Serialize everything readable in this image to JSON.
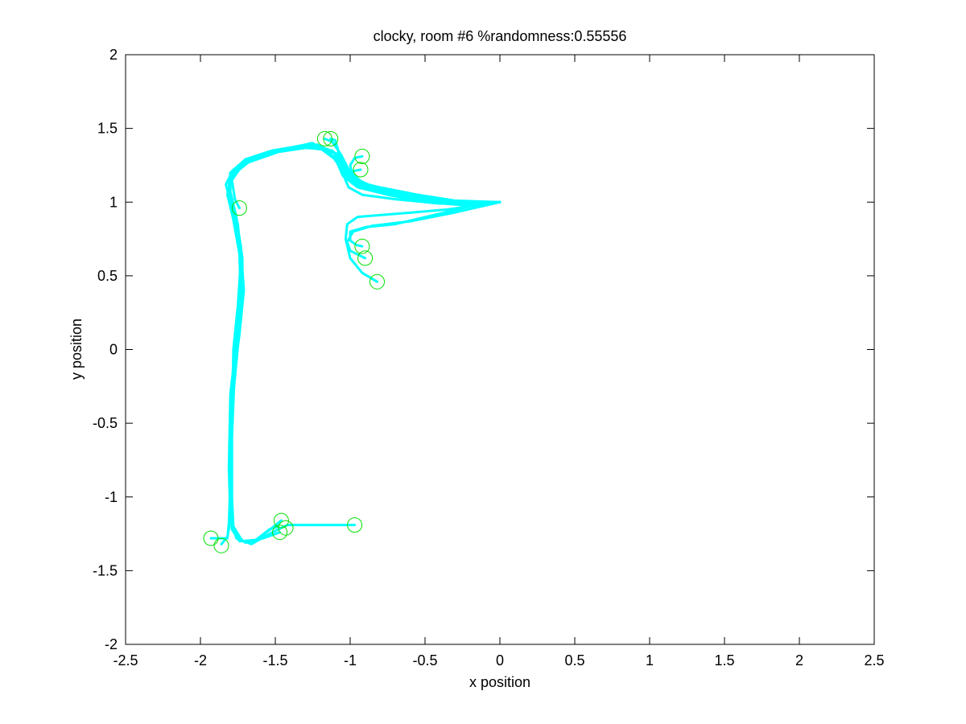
{
  "chart_data": {
    "type": "line",
    "title": "clocky, room #6 %randomness:0.55556",
    "xlabel": "x position",
    "ylabel": "y position",
    "xlim": [
      -2.5,
      2.5
    ],
    "ylim": [
      -2,
      2
    ],
    "xticks": [
      -2.5,
      -2,
      -1.5,
      -1,
      -0.5,
      0,
      0.5,
      1,
      1.5,
      2,
      2.5
    ],
    "yticks": [
      -2,
      -1.5,
      -1,
      -0.5,
      0,
      0.5,
      1,
      1.5,
      2
    ],
    "xtick_labels": [
      "-2.5",
      "-2",
      "-1.5",
      "-1",
      "-0.5",
      "0",
      "0.5",
      "1",
      "1.5",
      "2",
      "2.5"
    ],
    "ytick_labels": [
      "-2",
      "-1.5",
      "-1",
      "-0.5",
      "0",
      "0.5",
      "1",
      "1.5",
      "2"
    ],
    "grid": false,
    "colors": {
      "trajectory": "#00ffff",
      "endpoint": "#00e000",
      "axes": "#000000",
      "background": "#ffffff"
    },
    "series": [
      {
        "values": [
          [
            0,
            1
          ],
          [
            -0.2,
            0.99
          ],
          [
            -0.45,
            1.03
          ],
          [
            -0.7,
            1.08
          ],
          [
            -0.9,
            1.12
          ],
          [
            -1.0,
            1.2
          ],
          [
            -1.08,
            1.32
          ],
          [
            -1.22,
            1.39
          ],
          [
            -1.45,
            1.36
          ],
          [
            -1.65,
            1.3
          ],
          [
            -1.78,
            1.22
          ],
          [
            -1.83,
            1.12
          ],
          [
            -1.8,
            1.0
          ],
          [
            -1.75,
            0.85
          ],
          [
            -1.73,
            0.6
          ],
          [
            -1.75,
            0.3
          ],
          [
            -1.78,
            0.0
          ],
          [
            -1.79,
            -0.5
          ],
          [
            -1.79,
            -1.0
          ],
          [
            -1.78,
            -1.2
          ],
          [
            -1.72,
            -1.3
          ],
          [
            -1.62,
            -1.29
          ],
          [
            -1.46,
            -1.16
          ]
        ]
      },
      {
        "values": [
          [
            0,
            1
          ],
          [
            -0.25,
            0.98
          ],
          [
            -0.5,
            1.0
          ],
          [
            -0.75,
            1.05
          ],
          [
            -0.95,
            1.1
          ],
          [
            -1.05,
            1.18
          ],
          [
            -1.1,
            1.3
          ],
          [
            -1.25,
            1.4
          ],
          [
            -1.5,
            1.35
          ],
          [
            -1.7,
            1.28
          ],
          [
            -1.8,
            1.2
          ],
          [
            -1.81,
            1.08
          ],
          [
            -1.77,
            0.92
          ],
          [
            -1.73,
            0.7
          ],
          [
            -1.71,
            0.4
          ],
          [
            -1.74,
            0.1
          ],
          [
            -1.78,
            -0.2
          ],
          [
            -1.8,
            -0.7
          ],
          [
            -1.8,
            -1.1
          ],
          [
            -1.77,
            -1.25
          ],
          [
            -1.7,
            -1.31
          ],
          [
            -1.58,
            -1.28
          ],
          [
            -1.47,
            -1.24
          ]
        ]
      },
      {
        "values": [
          [
            0,
            1
          ],
          [
            -0.3,
            1.01
          ],
          [
            -0.55,
            1.05
          ],
          [
            -0.8,
            1.09
          ],
          [
            -0.97,
            1.14
          ],
          [
            -1.05,
            1.24
          ],
          [
            -1.12,
            1.35
          ],
          [
            -1.3,
            1.37
          ],
          [
            -1.55,
            1.33
          ],
          [
            -1.72,
            1.25
          ],
          [
            -1.79,
            1.15
          ],
          [
            -1.77,
            1.02
          ],
          [
            -1.74,
            0.96
          ]
        ]
      },
      {
        "values": [
          [
            0,
            1
          ],
          [
            -0.28,
            0.99
          ],
          [
            -0.52,
            1.02
          ],
          [
            -0.78,
            1.07
          ],
          [
            -0.96,
            1.11
          ],
          [
            -1.04,
            1.19
          ],
          [
            -1.1,
            1.29
          ],
          [
            -1.22,
            1.38
          ],
          [
            -1.48,
            1.34
          ],
          [
            -1.68,
            1.27
          ],
          [
            -1.79,
            1.18
          ],
          [
            -1.82,
            1.05
          ],
          [
            -1.78,
            0.88
          ],
          [
            -1.74,
            0.65
          ],
          [
            -1.73,
            0.35
          ],
          [
            -1.76,
            0.05
          ],
          [
            -1.8,
            -0.3
          ],
          [
            -1.81,
            -0.8
          ],
          [
            -1.8,
            -1.15
          ],
          [
            -1.76,
            -1.28
          ],
          [
            -1.66,
            -1.32
          ],
          [
            -1.52,
            -1.24
          ],
          [
            -1.42,
            -1.19
          ],
          [
            -0.97,
            -1.19
          ]
        ]
      },
      {
        "values": [
          [
            0,
            1
          ],
          [
            -0.22,
            1.0
          ],
          [
            -0.48,
            1.01
          ],
          [
            -0.72,
            1.06
          ],
          [
            -0.93,
            1.11
          ],
          [
            -1.02,
            1.21
          ],
          [
            -1.09,
            1.33
          ],
          [
            -1.28,
            1.39
          ],
          [
            -1.52,
            1.35
          ],
          [
            -1.7,
            1.29
          ],
          [
            -1.8,
            1.2
          ],
          [
            -1.8,
            1.07
          ],
          [
            -1.76,
            0.9
          ],
          [
            -1.72,
            0.62
          ],
          [
            -1.72,
            0.32
          ],
          [
            -1.75,
            0.02
          ],
          [
            -1.79,
            -0.4
          ],
          [
            -1.8,
            -0.9
          ],
          [
            -1.81,
            -1.18
          ],
          [
            -1.82,
            -1.28
          ],
          [
            -1.93,
            -1.28
          ]
        ]
      },
      {
        "values": [
          [
            0,
            1
          ],
          [
            -0.26,
            0.98
          ],
          [
            -0.5,
            1.02
          ],
          [
            -0.76,
            1.07
          ],
          [
            -0.95,
            1.12
          ],
          [
            -1.04,
            1.22
          ],
          [
            -1.11,
            1.34
          ],
          [
            -1.26,
            1.4
          ],
          [
            -1.5,
            1.34
          ],
          [
            -1.69,
            1.28
          ],
          [
            -1.79,
            1.19
          ],
          [
            -1.81,
            1.06
          ],
          [
            -1.76,
            0.9
          ],
          [
            -1.73,
            0.66
          ],
          [
            -1.72,
            0.36
          ],
          [
            -1.75,
            0.04
          ],
          [
            -1.79,
            -0.35
          ],
          [
            -1.8,
            -0.85
          ],
          [
            -1.8,
            -1.16
          ],
          [
            -1.82,
            -1.27
          ],
          [
            -1.86,
            -1.32
          ]
        ]
      },
      {
        "values": [
          [
            0,
            1
          ],
          [
            -0.25,
            1.0
          ],
          [
            -0.5,
            1.04
          ],
          [
            -0.75,
            1.08
          ],
          [
            -0.92,
            1.12
          ],
          [
            -1.0,
            1.2
          ],
          [
            -1.06,
            1.32
          ],
          [
            -1.12,
            1.41
          ],
          [
            -1.17,
            1.43
          ]
        ]
      },
      {
        "values": [
          [
            0,
            1
          ],
          [
            -0.3,
            0.99
          ],
          [
            -0.55,
            1.03
          ],
          [
            -0.8,
            1.07
          ],
          [
            -0.98,
            1.13
          ],
          [
            -1.05,
            1.23
          ],
          [
            -1.08,
            1.35
          ],
          [
            -1.1,
            1.42
          ],
          [
            -1.13,
            1.43
          ]
        ]
      },
      {
        "values": [
          [
            0,
            1
          ],
          [
            -0.3,
            1.0
          ],
          [
            -0.6,
            1.05
          ],
          [
            -0.85,
            1.1
          ],
          [
            -0.98,
            1.16
          ],
          [
            -1.0,
            1.25
          ],
          [
            -0.97,
            1.3
          ],
          [
            -0.92,
            1.31
          ]
        ]
      },
      {
        "values": [
          [
            0,
            1
          ],
          [
            -0.35,
            1.0
          ],
          [
            -0.65,
            1.06
          ],
          [
            -0.88,
            1.12
          ],
          [
            -0.99,
            1.17
          ],
          [
            -0.98,
            1.21
          ],
          [
            -0.93,
            1.22
          ]
        ]
      },
      {
        "values": [
          [
            0,
            1
          ],
          [
            -0.2,
            0.97
          ],
          [
            -0.45,
            0.91
          ],
          [
            -0.7,
            0.85
          ],
          [
            -0.9,
            0.83
          ],
          [
            -1.0,
            0.8
          ],
          [
            -1.0,
            0.74
          ],
          [
            -0.96,
            0.71
          ],
          [
            -0.92,
            0.7
          ]
        ]
      },
      {
        "values": [
          [
            0,
            1
          ],
          [
            -0.3,
            0.93
          ],
          [
            -0.6,
            0.87
          ],
          [
            -0.85,
            0.84
          ],
          [
            -0.98,
            0.8
          ],
          [
            -1.02,
            0.73
          ],
          [
            -1.0,
            0.67
          ],
          [
            -0.94,
            0.64
          ],
          [
            -0.9,
            0.62
          ]
        ]
      },
      {
        "values": [
          [
            0,
            1
          ],
          [
            -0.35,
            0.95
          ],
          [
            -0.7,
            0.92
          ],
          [
            -0.95,
            0.9
          ],
          [
            -1.02,
            0.85
          ],
          [
            -1.03,
            0.75
          ],
          [
            -1.0,
            0.62
          ],
          [
            -0.92,
            0.52
          ],
          [
            -0.82,
            0.46
          ]
        ]
      },
      {
        "values": [
          [
            0,
            1
          ],
          [
            -0.4,
            0.99
          ],
          [
            -0.7,
            1.02
          ],
          [
            -0.92,
            1.05
          ],
          [
            -1.01,
            1.1
          ],
          [
            -1.07,
            1.24
          ],
          [
            -1.15,
            1.36
          ],
          [
            -1.35,
            1.37
          ],
          [
            -1.58,
            1.32
          ],
          [
            -1.74,
            1.24
          ],
          [
            -1.81,
            1.12
          ],
          [
            -1.79,
            0.97
          ],
          [
            -1.75,
            0.8
          ],
          [
            -1.72,
            0.5
          ],
          [
            -1.74,
            0.2
          ],
          [
            -1.77,
            -0.1
          ],
          [
            -1.79,
            -0.6
          ],
          [
            -1.79,
            -1.05
          ],
          [
            -1.79,
            -1.22
          ],
          [
            -1.74,
            -1.3
          ],
          [
            -1.64,
            -1.3
          ],
          [
            -1.54,
            -1.22
          ],
          [
            -1.48,
            -1.2
          ]
        ]
      }
    ],
    "markers": [
      {
        "x": -1.17,
        "y": 1.43
      },
      {
        "x": -1.13,
        "y": 1.43
      },
      {
        "x": -0.92,
        "y": 1.31
      },
      {
        "x": -0.93,
        "y": 1.22
      },
      {
        "x": -1.74,
        "y": 0.96
      },
      {
        "x": -0.92,
        "y": 0.7
      },
      {
        "x": -0.9,
        "y": 0.62
      },
      {
        "x": -0.82,
        "y": 0.46
      },
      {
        "x": -1.46,
        "y": -1.16
      },
      {
        "x": -1.43,
        "y": -1.21
      },
      {
        "x": -1.47,
        "y": -1.24
      },
      {
        "x": -0.97,
        "y": -1.19
      },
      {
        "x": -1.93,
        "y": -1.28
      },
      {
        "x": -1.86,
        "y": -1.33
      }
    ]
  }
}
